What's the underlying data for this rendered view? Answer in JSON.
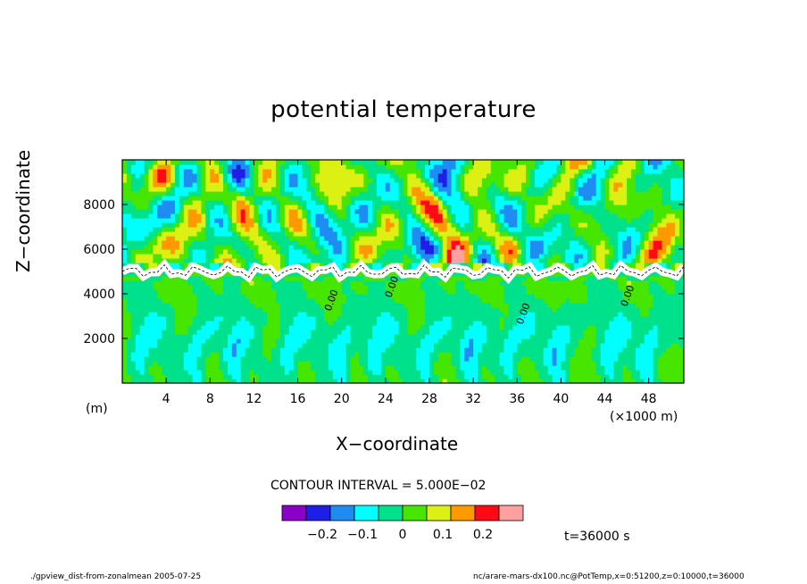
{
  "chart_data": {
    "type": "heatmap",
    "title": "potential temperature",
    "xlabel": "X−coordinate",
    "ylabel": "Z−coordinate",
    "x_unit": "(×1000 m)",
    "y_unit": "(m)",
    "xlim": [
      0,
      51.2
    ],
    "ylim": [
      0,
      10000
    ],
    "x_ticks": [
      "4",
      "8",
      "12",
      "16",
      "20",
      "24",
      "28",
      "32",
      "36",
      "40",
      "44",
      "48"
    ],
    "y_ticks": [
      "2000",
      "4000",
      "6000",
      "8000"
    ],
    "x_tick_values": [
      4,
      8,
      12,
      16,
      20,
      24,
      28,
      32,
      36,
      40,
      44,
      48
    ],
    "y_tick_values": [
      2000,
      4000,
      6000,
      8000
    ],
    "contour_interval_text": "CONTOUR INTERVAL = 5.000E−02",
    "contour_line_label": "0.00",
    "colorbar": {
      "colors": [
        "#8a00c8",
        "#1e1ee6",
        "#1e8cf0",
        "#00ffff",
        "#00e18c",
        "#46e600",
        "#dcf014",
        "#ff9900",
        "#ff0a14",
        "#ffa0a0"
      ],
      "tick_labels": [
        "−0.2",
        "−0.1",
        "0",
        "0.1",
        "0.2"
      ],
      "tick_values": [
        -0.2,
        -0.1,
        0,
        0.1,
        0.2
      ]
    },
    "time_label": "t=36000 s",
    "grid": false
  },
  "footer": {
    "left": "./gpview_dist-from-zonalmean  2005-07-25",
    "right": "nc/arare-mars-dx100.nc@PotTemp,x=0:51200,z=0:10000,t=36000"
  }
}
